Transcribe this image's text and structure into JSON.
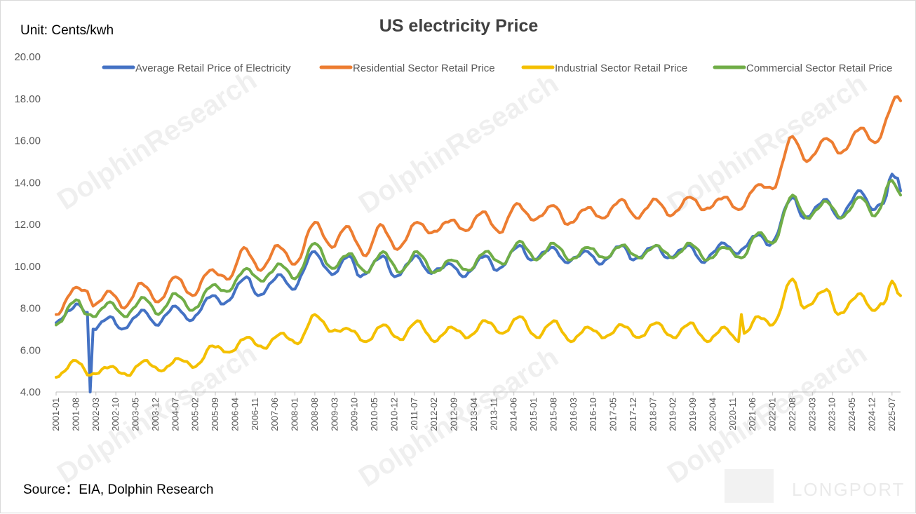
{
  "chart_data": {
    "type": "line",
    "title": "US electricity Price",
    "unit_label": "Unit: Cents/kwh",
    "source": "Source：EIA, Dolphin Research",
    "ylim": [
      4,
      20
    ],
    "y_ticks": [
      "4.00",
      "6.00",
      "8.00",
      "10.00",
      "12.00",
      "14.00",
      "16.00",
      "18.00",
      "20.00"
    ],
    "x_tick_labels": [
      "2001-01",
      "2001-08",
      "2002-03",
      "2002-10",
      "2003-05",
      "2003-12",
      "2004-07",
      "2005-02",
      "2005-09",
      "2006-04",
      "2006-11",
      "2007-06",
      "2008-01",
      "2008-08",
      "2009-03",
      "2009-10",
      "2010-05",
      "2010-12",
      "2011-07",
      "2012-02",
      "2012-09",
      "2013-04",
      "2013-11",
      "2014-06",
      "2015-01",
      "2015-08",
      "2016-03",
      "2016-10",
      "2017-05",
      "2017-12",
      "2018-07",
      "2019-02",
      "2019-09",
      "2020-04",
      "2020-11",
      "2021-06",
      "2022-01",
      "2022-08",
      "2023-03",
      "2023-10",
      "2024-05",
      "2024-12",
      "2025-07"
    ],
    "grid": false,
    "legend_position": "top",
    "start_month": "2001-01",
    "end_month": "2025-10",
    "series": [
      {
        "name": "Average Retail Price of Electricity",
        "color": "#4472C4",
        "anchors": [
          [
            "2001-01",
            7.3
          ],
          [
            "2001-06",
            7.9
          ],
          [
            "2001-08",
            8.2
          ],
          [
            "2001-12",
            7.8
          ],
          [
            "2002-01",
            4.0
          ],
          [
            "2002-02",
            7.0
          ],
          [
            "2002-08",
            7.6
          ],
          [
            "2002-12",
            7.0
          ],
          [
            "2003-08",
            7.9
          ],
          [
            "2003-12",
            7.2
          ],
          [
            "2004-07",
            8.1
          ],
          [
            "2004-12",
            7.4
          ],
          [
            "2005-08",
            8.6
          ],
          [
            "2005-12",
            8.2
          ],
          [
            "2006-08",
            9.5
          ],
          [
            "2006-12",
            8.6
          ],
          [
            "2007-08",
            9.6
          ],
          [
            "2007-12",
            8.9
          ],
          [
            "2008-08",
            10.7
          ],
          [
            "2008-12",
            9.9
          ],
          [
            "2009-02",
            9.6
          ],
          [
            "2009-08",
            10.5
          ],
          [
            "2009-12",
            9.5
          ],
          [
            "2010-08",
            10.5
          ],
          [
            "2010-12",
            9.5
          ],
          [
            "2011-08",
            10.5
          ],
          [
            "2011-12",
            9.7
          ],
          [
            "2012-08",
            10.1
          ],
          [
            "2012-12",
            9.5
          ],
          [
            "2013-08",
            10.5
          ],
          [
            "2013-12",
            9.8
          ],
          [
            "2014-08",
            11.0
          ],
          [
            "2014-12",
            10.3
          ],
          [
            "2015-08",
            10.9
          ],
          [
            "2015-12",
            10.2
          ],
          [
            "2016-08",
            10.7
          ],
          [
            "2016-12",
            10.1
          ],
          [
            "2017-08",
            11.0
          ],
          [
            "2017-12",
            10.3
          ],
          [
            "2018-08",
            11.0
          ],
          [
            "2018-12",
            10.4
          ],
          [
            "2019-08",
            11.0
          ],
          [
            "2019-12",
            10.2
          ],
          [
            "2020-08",
            11.1
          ],
          [
            "2020-12",
            10.6
          ],
          [
            "2021-08",
            11.5
          ],
          [
            "2021-12",
            11.0
          ],
          [
            "2022-08",
            13.3
          ],
          [
            "2022-12",
            12.3
          ],
          [
            "2023-08",
            13.2
          ],
          [
            "2023-12",
            12.3
          ],
          [
            "2024-08",
            13.6
          ],
          [
            "2024-12",
            12.7
          ],
          [
            "2025-04",
            13.0
          ],
          [
            "2025-07",
            14.4
          ],
          [
            "2025-09",
            14.2
          ],
          [
            "2025-10",
            13.6
          ]
        ]
      },
      {
        "name": "Residential Sector Retail Price",
        "color": "#ED7D31",
        "anchors": [
          [
            "2001-01",
            7.7
          ],
          [
            "2001-08",
            9.0
          ],
          [
            "2001-12",
            8.8
          ],
          [
            "2002-02",
            8.1
          ],
          [
            "2002-08",
            8.8
          ],
          [
            "2003-01",
            8.0
          ],
          [
            "2003-07",
            9.2
          ],
          [
            "2004-01",
            8.3
          ],
          [
            "2004-07",
            9.5
          ],
          [
            "2005-01",
            8.6
          ],
          [
            "2005-07",
            9.8
          ],
          [
            "2006-02",
            9.4
          ],
          [
            "2006-07",
            10.9
          ],
          [
            "2007-01",
            9.8
          ],
          [
            "2007-07",
            11.0
          ],
          [
            "2008-01",
            10.1
          ],
          [
            "2008-08",
            12.1
          ],
          [
            "2009-02",
            10.9
          ],
          [
            "2009-07",
            11.9
          ],
          [
            "2010-02",
            10.5
          ],
          [
            "2010-07",
            12.0
          ],
          [
            "2011-01",
            10.8
          ],
          [
            "2011-08",
            12.1
          ],
          [
            "2012-01",
            11.6
          ],
          [
            "2012-08",
            12.2
          ],
          [
            "2013-01",
            11.7
          ],
          [
            "2013-07",
            12.6
          ],
          [
            "2014-01",
            11.6
          ],
          [
            "2014-07",
            13.0
          ],
          [
            "2015-01",
            12.2
          ],
          [
            "2015-08",
            12.9
          ],
          [
            "2016-01",
            12.0
          ],
          [
            "2016-08",
            12.8
          ],
          [
            "2017-01",
            12.3
          ],
          [
            "2017-08",
            13.2
          ],
          [
            "2018-01",
            12.3
          ],
          [
            "2018-08",
            13.2
          ],
          [
            "2019-01",
            12.4
          ],
          [
            "2019-08",
            13.3
          ],
          [
            "2020-01",
            12.7
          ],
          [
            "2020-08",
            13.3
          ],
          [
            "2021-01",
            12.7
          ],
          [
            "2021-08",
            13.9
          ],
          [
            "2022-01",
            13.7
          ],
          [
            "2022-08",
            16.2
          ],
          [
            "2023-01",
            15.0
          ],
          [
            "2023-08",
            16.1
          ],
          [
            "2024-01",
            15.4
          ],
          [
            "2024-08",
            16.6
          ],
          [
            "2025-01",
            15.9
          ],
          [
            "2025-09",
            18.1
          ],
          [
            "2025-10",
            17.9
          ]
        ]
      },
      {
        "name": "Industrial Sector Retail Price",
        "color": "#F4C000",
        "anchors": [
          [
            "2001-01",
            4.7
          ],
          [
            "2001-08",
            5.5
          ],
          [
            "2002-01",
            4.8
          ],
          [
            "2002-08",
            5.2
          ],
          [
            "2003-02",
            4.8
          ],
          [
            "2003-08",
            5.5
          ],
          [
            "2004-02",
            5.0
          ],
          [
            "2004-08",
            5.6
          ],
          [
            "2005-02",
            5.2
          ],
          [
            "2005-08",
            6.2
          ],
          [
            "2006-02",
            5.9
          ],
          [
            "2006-08",
            6.6
          ],
          [
            "2007-02",
            6.1
          ],
          [
            "2007-08",
            6.8
          ],
          [
            "2008-02",
            6.3
          ],
          [
            "2008-08",
            7.7
          ],
          [
            "2009-02",
            6.9
          ],
          [
            "2009-08",
            7.0
          ],
          [
            "2010-02",
            6.4
          ],
          [
            "2010-08",
            7.2
          ],
          [
            "2011-02",
            6.5
          ],
          [
            "2011-08",
            7.4
          ],
          [
            "2012-02",
            6.4
          ],
          [
            "2012-08",
            7.1
          ],
          [
            "2013-02",
            6.6
          ],
          [
            "2013-08",
            7.4
          ],
          [
            "2014-02",
            6.8
          ],
          [
            "2014-08",
            7.6
          ],
          [
            "2015-02",
            6.6
          ],
          [
            "2015-08",
            7.4
          ],
          [
            "2016-02",
            6.4
          ],
          [
            "2016-08",
            7.1
          ],
          [
            "2017-02",
            6.6
          ],
          [
            "2017-08",
            7.2
          ],
          [
            "2018-02",
            6.6
          ],
          [
            "2018-08",
            7.3
          ],
          [
            "2019-02",
            6.6
          ],
          [
            "2019-08",
            7.3
          ],
          [
            "2020-02",
            6.4
          ],
          [
            "2020-08",
            7.1
          ],
          [
            "2021-01",
            6.4
          ],
          [
            "2021-02",
            7.7
          ],
          [
            "2021-03",
            6.8
          ],
          [
            "2021-08",
            7.6
          ],
          [
            "2022-01",
            7.2
          ],
          [
            "2022-08",
            9.4
          ],
          [
            "2022-12",
            8.0
          ],
          [
            "2023-08",
            8.9
          ],
          [
            "2023-12",
            7.7
          ],
          [
            "2024-08",
            8.7
          ],
          [
            "2024-12",
            7.9
          ],
          [
            "2025-04",
            8.2
          ],
          [
            "2025-07",
            9.3
          ],
          [
            "2025-10",
            8.6
          ]
        ]
      },
      {
        "name": "Commercial Sector Retail Price",
        "color": "#70AD47",
        "anchors": [
          [
            "2001-01",
            7.2
          ],
          [
            "2001-08",
            8.4
          ],
          [
            "2001-12",
            7.7
          ],
          [
            "2002-02",
            7.6
          ],
          [
            "2002-08",
            8.3
          ],
          [
            "2003-01",
            7.6
          ],
          [
            "2003-08",
            8.5
          ],
          [
            "2004-01",
            7.7
          ],
          [
            "2004-07",
            8.7
          ],
          [
            "2005-01",
            7.9
          ],
          [
            "2005-08",
            9.1
          ],
          [
            "2006-01",
            8.8
          ],
          [
            "2006-08",
            9.9
          ],
          [
            "2007-01",
            9.3
          ],
          [
            "2007-08",
            10.1
          ],
          [
            "2008-01",
            9.4
          ],
          [
            "2008-08",
            11.1
          ],
          [
            "2009-02",
            9.9
          ],
          [
            "2009-08",
            10.6
          ],
          [
            "2010-02",
            9.7
          ],
          [
            "2010-08",
            10.7
          ],
          [
            "2011-02",
            9.7
          ],
          [
            "2011-08",
            10.7
          ],
          [
            "2012-02",
            9.7
          ],
          [
            "2012-08",
            10.3
          ],
          [
            "2013-02",
            9.8
          ],
          [
            "2013-08",
            10.7
          ],
          [
            "2014-02",
            10.1
          ],
          [
            "2014-08",
            11.2
          ],
          [
            "2015-02",
            10.3
          ],
          [
            "2015-08",
            11.1
          ],
          [
            "2016-02",
            10.3
          ],
          [
            "2016-08",
            10.9
          ],
          [
            "2017-02",
            10.4
          ],
          [
            "2017-08",
            11.0
          ],
          [
            "2018-02",
            10.4
          ],
          [
            "2018-08",
            11.0
          ],
          [
            "2019-02",
            10.4
          ],
          [
            "2019-08",
            11.1
          ],
          [
            "2020-02",
            10.3
          ],
          [
            "2020-08",
            10.9
          ],
          [
            "2021-02",
            10.4
          ],
          [
            "2021-08",
            11.6
          ],
          [
            "2022-01",
            11.1
          ],
          [
            "2022-08",
            13.4
          ],
          [
            "2023-01",
            12.3
          ],
          [
            "2023-08",
            13.1
          ],
          [
            "2024-01",
            12.3
          ],
          [
            "2024-08",
            13.3
          ],
          [
            "2025-01",
            12.4
          ],
          [
            "2025-07",
            14.1
          ],
          [
            "2025-10",
            13.4
          ]
        ]
      }
    ]
  },
  "branding": {
    "watermark": "DolphinResearch",
    "logo": "LONGPORT"
  }
}
